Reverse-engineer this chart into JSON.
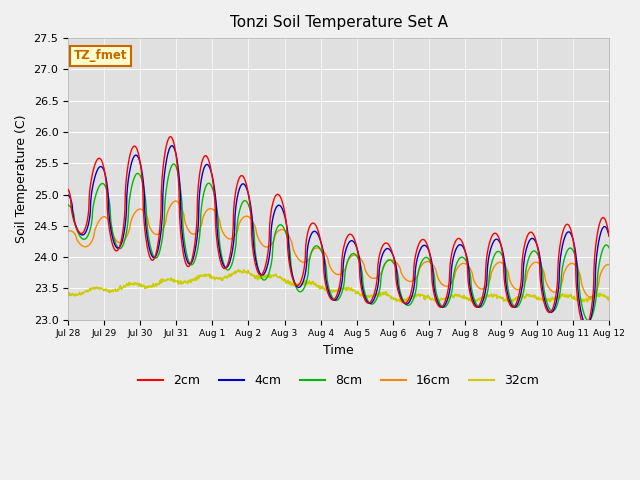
{
  "title": "Tonzi Soil Temperature Set A",
  "xlabel": "Time",
  "ylabel": "Soil Temperature (C)",
  "ylim": [
    23.0,
    27.5
  ],
  "yticks": [
    23.0,
    23.5,
    24.0,
    24.5,
    25.0,
    25.5,
    26.0,
    26.5,
    27.0,
    27.5
  ],
  "xtick_labels": [
    "Jul 28",
    "Jul 29",
    "Jul 30",
    "Jul 31",
    "Aug 1",
    "Aug 2",
    "Aug 3",
    "Aug 4",
    "Aug 5",
    "Aug 6",
    "Aug 7",
    "Aug 8",
    "Aug 9",
    "Aug 10",
    "Aug 11",
    "Aug 12"
  ],
  "colors": {
    "2cm": "#ff0000",
    "4cm": "#0000cc",
    "8cm": "#00bb00",
    "16cm": "#ff8800",
    "32cm": "#cccc00"
  },
  "fig_bg_color": "#f0f0f0",
  "plot_bg_color": "#e0e0e0",
  "annotation_text": "TZ_fmet",
  "annotation_bg": "#ffffcc",
  "annotation_fg": "#cc6600",
  "legend_labels": [
    "2cm",
    "4cm",
    "8cm",
    "16cm",
    "32cm"
  ]
}
